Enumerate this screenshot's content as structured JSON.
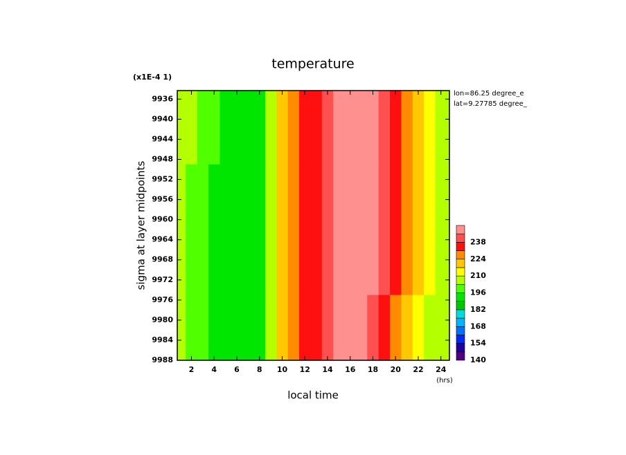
{
  "chart_data": {
    "type": "contour",
    "title": "temperature",
    "scale_note": "(x1E-4 1)",
    "annotations": [
      "lon=86.25 degree_e",
      "lat=9.27785 degree_"
    ],
    "x_label": "local time",
    "x_unit": "(hrs)",
    "y_label": "sigma at layer midpoints",
    "x": [
      1,
      2,
      3,
      4,
      5,
      6,
      7,
      8,
      9,
      10,
      11,
      12,
      13,
      14,
      15,
      16,
      17,
      18,
      19,
      20,
      21,
      22,
      23,
      24
    ],
    "y": [
      9936,
      9962,
      9988
    ],
    "values": [
      [
        205,
        203,
        199,
        196,
        193,
        192,
        192,
        192,
        209,
        219,
        226,
        233,
        236,
        238,
        246,
        247,
        247,
        247,
        243,
        236,
        227,
        219,
        213,
        208
      ],
      [
        204,
        201,
        197,
        194,
        192,
        191,
        191,
        192,
        208,
        219,
        226,
        233,
        236,
        238,
        246,
        247,
        247,
        246,
        240,
        232,
        224,
        217,
        211,
        206
      ],
      [
        203,
        200,
        196,
        193,
        191,
        190,
        190,
        191,
        207,
        219,
        226,
        233,
        236,
        238,
        246,
        247,
        247,
        244,
        236,
        229,
        221,
        214,
        209,
        204
      ]
    ],
    "xlim": [
      0.75,
      24.75
    ],
    "xticks": [
      2,
      4,
      6,
      8,
      10,
      12,
      14,
      16,
      18,
      20,
      22,
      24
    ],
    "ylim": [
      9934.3,
      9988
    ],
    "y_inverted": true,
    "yticks": [
      9936,
      9940,
      9944,
      9948,
      9952,
      9956,
      9960,
      9964,
      9968,
      9972,
      9976,
      9980,
      9984,
      9988
    ],
    "colorbar": {
      "levels": [
        140,
        147,
        154,
        161,
        168,
        175,
        182,
        189,
        196,
        203,
        210,
        217,
        224,
        231,
        238,
        245,
        252
      ],
      "colors": [
        "#500080",
        "#2000a0",
        "#0028ff",
        "#0070ff",
        "#00b4ff",
        "#00dcdc",
        "#00c800",
        "#00e600",
        "#50ff00",
        "#b4ff00",
        "#ffff00",
        "#ffc800",
        "#ff8c00",
        "#ff1010",
        "#ff5050",
        "#ff9090"
      ],
      "ticks": [
        140,
        154,
        168,
        182,
        196,
        210,
        224,
        238
      ]
    }
  }
}
